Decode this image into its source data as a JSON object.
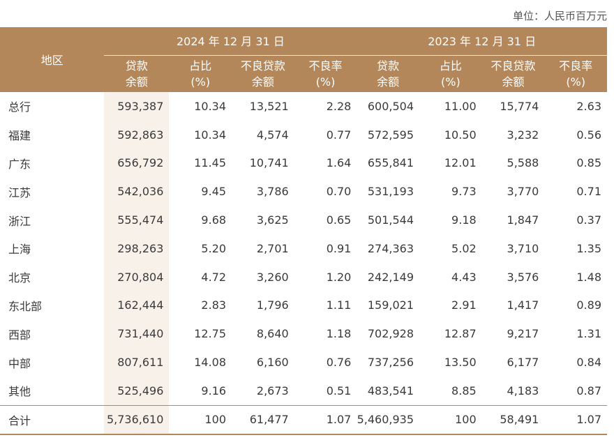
{
  "unit_note": "单位：人民币百万元",
  "header": {
    "region_label": "地区",
    "group_2024": "2024 年 12 月 31 日",
    "group_2023": "2023 年 12 月 31 日",
    "cols": [
      {
        "l1": "贷款",
        "l2": "余额"
      },
      {
        "l1": "占比",
        "l2": "(%)"
      },
      {
        "l1": "不良贷款",
        "l2": "余额"
      },
      {
        "l1": "不良率",
        "l2": "(%)"
      },
      {
        "l1": "贷款",
        "l2": "余额"
      },
      {
        "l1": "占比",
        "l2": "(%)"
      },
      {
        "l1": "不良贷款",
        "l2": "余额"
      },
      {
        "l1": "不良率",
        "l2": "(%)"
      }
    ]
  },
  "rows": [
    {
      "region": "总行",
      "v": [
        "593,387",
        "10.34",
        "13,521",
        "2.28",
        "600,504",
        "11.00",
        "15,774",
        "2.63"
      ]
    },
    {
      "region": "福建",
      "v": [
        "592,863",
        "10.34",
        "4,574",
        "0.77",
        "572,595",
        "10.50",
        "3,232",
        "0.56"
      ]
    },
    {
      "region": "广东",
      "v": [
        "656,792",
        "11.45",
        "10,741",
        "1.64",
        "655,841",
        "12.01",
        "5,588",
        "0.85"
      ]
    },
    {
      "region": "江苏",
      "v": [
        "542,036",
        "9.45",
        "3,786",
        "0.70",
        "531,193",
        "9.73",
        "3,770",
        "0.71"
      ]
    },
    {
      "region": "浙江",
      "v": [
        "555,474",
        "9.68",
        "3,625",
        "0.65",
        "501,544",
        "9.18",
        "1,847",
        "0.37"
      ]
    },
    {
      "region": "上海",
      "v": [
        "298,263",
        "5.20",
        "2,701",
        "0.91",
        "274,363",
        "5.02",
        "3,710",
        "1.35"
      ]
    },
    {
      "region": "北京",
      "v": [
        "270,804",
        "4.72",
        "3,260",
        "1.20",
        "242,149",
        "4.43",
        "3,576",
        "1.48"
      ]
    },
    {
      "region": "东北部",
      "v": [
        "162,444",
        "2.83",
        "1,796",
        "1.11",
        "159,021",
        "2.91",
        "1,417",
        "0.89"
      ]
    },
    {
      "region": "西部",
      "v": [
        "731,440",
        "12.75",
        "8,640",
        "1.18",
        "702,928",
        "12.87",
        "9,217",
        "1.31"
      ]
    },
    {
      "region": "中部",
      "v": [
        "807,611",
        "14.08",
        "6,160",
        "0.76",
        "737,256",
        "13.50",
        "6,177",
        "0.84"
      ]
    },
    {
      "region": "其他",
      "v": [
        "525,496",
        "9.16",
        "2,673",
        "0.51",
        "483,541",
        "8.85",
        "4,183",
        "0.87"
      ]
    },
    {
      "region": "合计",
      "v": [
        "5,736,610",
        "100",
        "61,477",
        "1.07",
        "5,460,935",
        "100",
        "58,491",
        "1.07"
      ]
    }
  ]
}
